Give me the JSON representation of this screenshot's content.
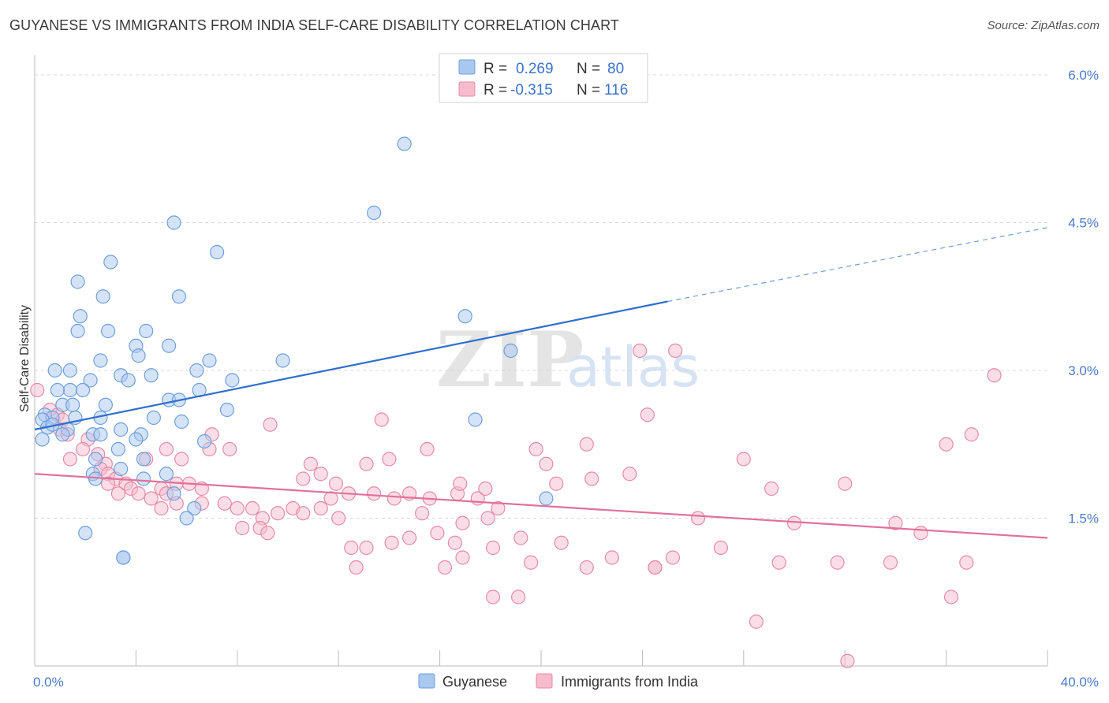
{
  "header": {
    "title": "GUYANESE VS IMMIGRANTS FROM INDIA SELF-CARE DISABILITY CORRELATION CHART",
    "source": "Source: ZipAtlas.com"
  },
  "watermark": {
    "zip": "ZIP",
    "atlas": "atlas"
  },
  "legend_box": [
    {
      "r_label": "R =",
      "r_value": "0.269",
      "n_label": "N =",
      "n_value": "80",
      "color": "#a9c8f0",
      "edge": "#6d9fdc"
    },
    {
      "r_label": "R =",
      "r_value": "-0.315",
      "n_label": "N =",
      "n_value": "116",
      "color": "#f6bccd",
      "edge": "#e58aa7"
    }
  ],
  "chart_data": {
    "type": "scatter",
    "title": "GUYANESE VS IMMIGRANTS FROM INDIA SELF-CARE DISABILITY CORRELATION CHART",
    "xlabel": "",
    "ylabel": "Self-Care Disability",
    "xlim": [
      0,
      40
    ],
    "ylim": [
      0,
      6.2
    ],
    "x_tick_labels": [
      {
        "value": 0,
        "label": "0.0%"
      },
      {
        "value": 40,
        "label": "40.0%"
      }
    ],
    "y_tick_labels": [
      {
        "value": 1.5,
        "label": "1.5%"
      },
      {
        "value": 3.0,
        "label": "3.0%"
      },
      {
        "value": 4.5,
        "label": "4.5%"
      },
      {
        "value": 6.0,
        "label": "6.0%"
      }
    ],
    "legend_position": "bottom-center",
    "grid": "horizontal-dashed",
    "series": [
      {
        "name": "Guyanese",
        "color": "#6d9fdc",
        "fill": "#a9c8f0",
        "trend": {
          "x": [
            0,
            25
          ],
          "y": [
            2.4,
            3.7
          ],
          "dashed_to": [
            40,
            4.45
          ]
        },
        "points": [
          [
            5.5,
            4.5
          ],
          [
            7.2,
            4.2
          ],
          [
            3.0,
            4.1
          ],
          [
            1.7,
            3.9
          ],
          [
            2.7,
            3.75
          ],
          [
            5.7,
            3.75
          ],
          [
            17.0,
            3.55
          ],
          [
            1.8,
            3.55
          ],
          [
            1.7,
            3.4
          ],
          [
            2.9,
            3.4
          ],
          [
            4.4,
            3.4
          ],
          [
            5.3,
            3.25
          ],
          [
            4.0,
            3.25
          ],
          [
            4.1,
            3.15
          ],
          [
            18.8,
            3.2
          ],
          [
            17.4,
            2.5
          ],
          [
            2.6,
            3.1
          ],
          [
            6.9,
            3.1
          ],
          [
            9.8,
            3.1
          ],
          [
            2.2,
            2.9
          ],
          [
            3.4,
            2.95
          ],
          [
            3.7,
            2.9
          ],
          [
            4.6,
            2.95
          ],
          [
            6.4,
            3.0
          ],
          [
            1.4,
            3.0
          ],
          [
            0.8,
            3.0
          ],
          [
            7.8,
            2.9
          ],
          [
            1.9,
            2.8
          ],
          [
            1.4,
            2.8
          ],
          [
            0.9,
            2.8
          ],
          [
            6.5,
            2.8
          ],
          [
            5.3,
            2.7
          ],
          [
            5.7,
            2.7
          ],
          [
            2.8,
            2.65
          ],
          [
            1.1,
            2.65
          ],
          [
            1.5,
            2.65
          ],
          [
            7.6,
            2.6
          ],
          [
            0.4,
            2.55
          ],
          [
            0.7,
            2.52
          ],
          [
            0.3,
            2.5
          ],
          [
            1.6,
            2.52
          ],
          [
            2.6,
            2.52
          ],
          [
            4.7,
            2.52
          ],
          [
            5.8,
            2.48
          ],
          [
            0.5,
            2.42
          ],
          [
            0.7,
            2.45
          ],
          [
            1.3,
            2.4
          ],
          [
            1.1,
            2.35
          ],
          [
            0.3,
            2.3
          ],
          [
            2.3,
            2.35
          ],
          [
            3.4,
            2.4
          ],
          [
            2.6,
            2.35
          ],
          [
            4.2,
            2.35
          ],
          [
            4.0,
            2.3
          ],
          [
            6.7,
            2.28
          ],
          [
            3.3,
            2.2
          ],
          [
            4.3,
            2.1
          ],
          [
            2.4,
            2.1
          ],
          [
            3.4,
            2.0
          ],
          [
            2.3,
            1.95
          ],
          [
            5.2,
            1.95
          ],
          [
            2.4,
            1.9
          ],
          [
            4.3,
            1.9
          ],
          [
            5.5,
            1.75
          ],
          [
            20.2,
            1.7
          ],
          [
            6.3,
            1.6
          ],
          [
            6.0,
            1.5
          ],
          [
            3.5,
            1.1
          ],
          [
            3.5,
            1.1
          ],
          [
            2.0,
            1.35
          ],
          [
            14.6,
            5.3
          ],
          [
            13.4,
            4.6
          ]
        ]
      },
      {
        "name": "Immigrants from India",
        "color": "#e58aa7",
        "fill": "#f6bccd",
        "trend": {
          "x": [
            0,
            40
          ],
          "y": [
            1.95,
            1.3
          ]
        },
        "points": [
          [
            0.1,
            2.8
          ],
          [
            0.6,
            2.6
          ],
          [
            0.9,
            2.55
          ],
          [
            1.1,
            2.5
          ],
          [
            1.0,
            2.4
          ],
          [
            1.3,
            2.35
          ],
          [
            2.1,
            2.3
          ],
          [
            1.9,
            2.2
          ],
          [
            2.5,
            2.15
          ],
          [
            1.4,
            2.1
          ],
          [
            2.8,
            2.05
          ],
          [
            2.6,
            2.0
          ],
          [
            2.9,
            1.95
          ],
          [
            3.2,
            1.9
          ],
          [
            3.6,
            1.85
          ],
          [
            2.9,
            1.85
          ],
          [
            3.8,
            1.8
          ],
          [
            3.3,
            1.75
          ],
          [
            4.1,
            1.75
          ],
          [
            4.6,
            1.7
          ],
          [
            5.0,
            1.8
          ],
          [
            5.2,
            1.75
          ],
          [
            5.6,
            1.85
          ],
          [
            6.1,
            1.85
          ],
          [
            6.6,
            1.8
          ],
          [
            4.4,
            2.1
          ],
          [
            5.2,
            2.2
          ],
          [
            5.8,
            2.1
          ],
          [
            6.9,
            2.2
          ],
          [
            7.0,
            2.35
          ],
          [
            7.7,
            2.2
          ],
          [
            5.0,
            1.6
          ],
          [
            5.6,
            1.65
          ],
          [
            6.6,
            1.65
          ],
          [
            7.5,
            1.65
          ],
          [
            8.0,
            1.6
          ],
          [
            8.6,
            1.6
          ],
          [
            9.0,
            1.5
          ],
          [
            9.6,
            1.55
          ],
          [
            8.9,
            1.4
          ],
          [
            8.2,
            1.4
          ],
          [
            9.2,
            1.35
          ],
          [
            10.2,
            1.6
          ],
          [
            10.6,
            1.55
          ],
          [
            11.3,
            1.6
          ],
          [
            11.7,
            1.7
          ],
          [
            12.0,
            1.5
          ],
          [
            10.9,
            2.05
          ],
          [
            11.3,
            1.95
          ],
          [
            11.9,
            1.85
          ],
          [
            13.1,
            2.05
          ],
          [
            12.4,
            1.75
          ],
          [
            13.4,
            1.75
          ],
          [
            14.2,
            1.7
          ],
          [
            14.8,
            1.75
          ],
          [
            15.6,
            1.7
          ],
          [
            16.7,
            1.75
          ],
          [
            17.5,
            1.7
          ],
          [
            18.3,
            1.6
          ],
          [
            15.3,
            1.55
          ],
          [
            16.9,
            1.45
          ],
          [
            17.9,
            1.5
          ],
          [
            14.8,
            1.3
          ],
          [
            15.9,
            1.35
          ],
          [
            12.5,
            1.2
          ],
          [
            14.1,
            1.25
          ],
          [
            16.6,
            1.25
          ],
          [
            18.1,
            1.2
          ],
          [
            19.2,
            1.3
          ],
          [
            20.8,
            1.25
          ],
          [
            19.6,
            1.05
          ],
          [
            21.8,
            1.0
          ],
          [
            22.8,
            1.1
          ],
          [
            24.5,
            1.0
          ],
          [
            25.2,
            1.1
          ],
          [
            24.5,
            1.0
          ],
          [
            27.1,
            1.2
          ],
          [
            26.2,
            1.5
          ],
          [
            29.1,
            1.8
          ],
          [
            32.0,
            1.85
          ],
          [
            34.0,
            1.45
          ],
          [
            35.0,
            1.35
          ],
          [
            36.0,
            2.25
          ],
          [
            37.0,
            2.35
          ],
          [
            36.8,
            1.05
          ],
          [
            30.0,
            1.45
          ],
          [
            28.0,
            2.1
          ],
          [
            23.5,
            1.95
          ],
          [
            22.0,
            1.9
          ],
          [
            19.8,
            2.2
          ],
          [
            20.2,
            2.05
          ],
          [
            20.6,
            1.85
          ],
          [
            21.8,
            2.25
          ],
          [
            24.2,
            2.55
          ],
          [
            23.9,
            3.2
          ],
          [
            25.3,
            3.2
          ],
          [
            28.5,
            0.45
          ],
          [
            29.4,
            1.05
          ],
          [
            31.7,
            1.05
          ],
          [
            33.8,
            1.05
          ],
          [
            36.2,
            0.7
          ],
          [
            18.1,
            0.7
          ],
          [
            19.1,
            0.7
          ],
          [
            16.2,
            1.0
          ],
          [
            16.9,
            1.1
          ],
          [
            12.7,
            1.0
          ],
          [
            13.1,
            1.2
          ],
          [
            9.3,
            2.45
          ],
          [
            10.6,
            1.9
          ],
          [
            13.7,
            2.5
          ],
          [
            15.5,
            2.2
          ],
          [
            14.0,
            2.1
          ],
          [
            16.8,
            1.85
          ],
          [
            17.8,
            1.8
          ],
          [
            37.9,
            2.95
          ],
          [
            32.1,
            0.05
          ]
        ]
      }
    ]
  },
  "bottom_legend": [
    {
      "label": "Guyanese",
      "fill": "#a9c8f0",
      "edge": "#6d9fdc"
    },
    {
      "label": "Immigrants from India",
      "fill": "#f6bccd",
      "edge": "#e58aa7"
    }
  ]
}
